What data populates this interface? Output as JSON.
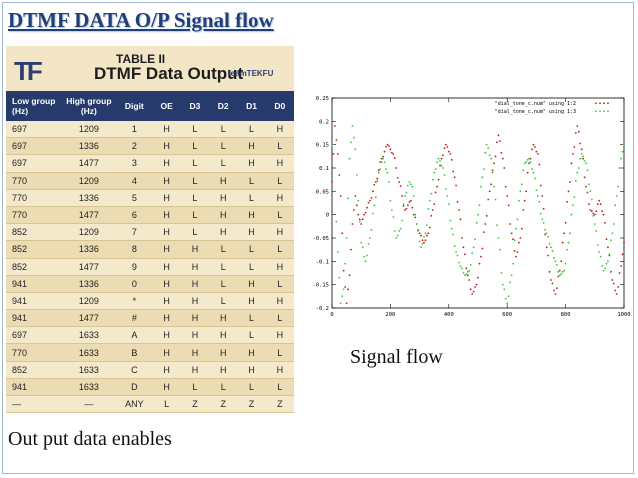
{
  "slide": {
    "title": "DTMF DATA O/P Signal flow",
    "signal_caption": "Signal flow",
    "bottom_caption": "Out put data enables"
  },
  "table": {
    "logo": "TF",
    "label": "TABLE II",
    "title": "DTMF Data Output",
    "brand": "teamTEKFU",
    "headers": [
      "Low group (Hz)",
      "High group (Hz)",
      "Digit",
      "OE",
      "D3",
      "D2",
      "D1",
      "D0"
    ],
    "rows": [
      [
        "697",
        "1209",
        "1",
        "H",
        "L",
        "L",
        "L",
        "H"
      ],
      [
        "697",
        "1336",
        "2",
        "H",
        "L",
        "L",
        "H",
        "L"
      ],
      [
        "697",
        "1477",
        "3",
        "H",
        "L",
        "L",
        "H",
        "H"
      ],
      [
        "770",
        "1209",
        "4",
        "H",
        "L",
        "H",
        "L",
        "L"
      ],
      [
        "770",
        "1336",
        "5",
        "H",
        "L",
        "H",
        "L",
        "H"
      ],
      [
        "770",
        "1477",
        "6",
        "H",
        "L",
        "H",
        "H",
        "L"
      ],
      [
        "852",
        "1209",
        "7",
        "H",
        "L",
        "H",
        "H",
        "H"
      ],
      [
        "852",
        "1336",
        "8",
        "H",
        "H",
        "L",
        "L",
        "L"
      ],
      [
        "852",
        "1477",
        "9",
        "H",
        "H",
        "L",
        "L",
        "H"
      ],
      [
        "941",
        "1336",
        "0",
        "H",
        "H",
        "L",
        "H",
        "L"
      ],
      [
        "941",
        "1209",
        "*",
        "H",
        "H",
        "L",
        "H",
        "H"
      ],
      [
        "941",
        "1477",
        "#",
        "H",
        "H",
        "H",
        "L",
        "L"
      ],
      [
        "697",
        "1633",
        "A",
        "H",
        "H",
        "H",
        "L",
        "H"
      ],
      [
        "770",
        "1633",
        "B",
        "H",
        "H",
        "H",
        "H",
        "L"
      ],
      [
        "852",
        "1633",
        "C",
        "H",
        "H",
        "H",
        "H",
        "H"
      ],
      [
        "941",
        "1633",
        "D",
        "H",
        "L",
        "L",
        "L",
        "L"
      ],
      [
        "—",
        "—",
        "ANY",
        "L",
        "Z",
        "Z",
        "Z",
        "Z"
      ]
    ]
  },
  "chart_data": {
    "type": "scatter",
    "xlim": [
      0,
      1000
    ],
    "ylim": [
      -0.2,
      0.25
    ],
    "x_ticks": [
      0,
      200,
      400,
      600,
      800,
      1000
    ],
    "y_ticks": [
      0.25,
      0.2,
      0.15,
      0.1,
      0.05,
      0,
      -0.05,
      -0.1,
      -0.15,
      -0.2
    ],
    "x_tick_labels": [
      "0",
      "200",
      "400",
      "600",
      "800",
      "1000"
    ],
    "y_tick_labels": [
      "0.25",
      "0.2",
      "0.15",
      "0.1",
      "0.05",
      "0",
      "-0.05",
      "-0.1",
      "-0.15",
      "-0.2"
    ],
    "legend_position": "top-right",
    "series": [
      {
        "name": "\"dial_tone_c.num\" using 1:2",
        "color": "#b22222",
        "points": [
          [
            0,
            0.07
          ],
          [
            10,
            0.19
          ],
          [
            20,
            0.13
          ],
          [
            30,
            0.04
          ],
          [
            40,
            -0.12
          ],
          [
            50,
            -0.19
          ],
          [
            60,
            -0.13
          ],
          [
            70,
            -0.02
          ],
          [
            80,
            0.04
          ],
          [
            90,
            0.0
          ],
          [
            100,
            -0.02
          ],
          [
            110,
            0.0
          ],
          [
            130,
            0.03
          ],
          [
            150,
            0.07
          ],
          [
            170,
            0.12
          ],
          [
            190,
            0.15
          ],
          [
            210,
            0.13
          ],
          [
            230,
            0.07
          ],
          [
            250,
            0.01
          ],
          [
            270,
            0.03
          ],
          [
            280,
            0.0
          ],
          [
            300,
            -0.04
          ],
          [
            315,
            -0.06
          ],
          [
            330,
            -0.04
          ],
          [
            345,
            0.01
          ],
          [
            360,
            0.06
          ],
          [
            375,
            0.12
          ],
          [
            390,
            0.15
          ],
          [
            405,
            0.13
          ],
          [
            420,
            0.08
          ],
          [
            435,
            0.01
          ],
          [
            450,
            -0.07
          ],
          [
            465,
            -0.13
          ],
          [
            480,
            -0.17
          ],
          [
            495,
            -0.15
          ],
          [
            510,
            -0.09
          ],
          [
            525,
            -0.02
          ],
          [
            540,
            0.05
          ],
          [
            555,
            0.11
          ],
          [
            570,
            0.17
          ],
          [
            585,
            0.12
          ],
          [
            600,
            0.04
          ],
          [
            615,
            -0.04
          ],
          [
            630,
            -0.09
          ],
          [
            645,
            -0.05
          ],
          [
            660,
            0.03
          ],
          [
            675,
            0.11
          ],
          [
            690,
            0.15
          ],
          [
            705,
            0.13
          ],
          [
            720,
            0.04
          ],
          [
            735,
            -0.07
          ],
          [
            750,
            -0.14
          ],
          [
            765,
            -0.17
          ],
          [
            780,
            -0.12
          ],
          [
            795,
            -0.04
          ],
          [
            810,
            0.05
          ],
          [
            825,
            0.13
          ],
          [
            840,
            0.19
          ],
          [
            855,
            0.14
          ],
          [
            870,
            0.06
          ],
          [
            885,
            0.01
          ],
          [
            900,
            0.0
          ],
          [
            915,
            0.03
          ],
          [
            930,
            0.0
          ],
          [
            945,
            -0.07
          ],
          [
            960,
            -0.14
          ],
          [
            975,
            -0.17
          ],
          [
            990,
            -0.11
          ],
          [
            1000,
            -0.06
          ]
        ]
      },
      {
        "name": "\"dial_tone_c.num\" using 1:3",
        "color": "#3cc83c",
        "points": [
          [
            0,
            0.15
          ],
          [
            10,
            0.05
          ],
          [
            20,
            -0.08
          ],
          [
            30,
            -0.19
          ],
          [
            40,
            -0.16
          ],
          [
            50,
            -0.05
          ],
          [
            60,
            0.12
          ],
          [
            70,
            0.19
          ],
          [
            80,
            0.14
          ],
          [
            90,
            0.03
          ],
          [
            100,
            -0.06
          ],
          [
            115,
            -0.1
          ],
          [
            130,
            -0.05
          ],
          [
            145,
            0.02
          ],
          [
            160,
            0.09
          ],
          [
            175,
            0.12
          ],
          [
            190,
            0.09
          ],
          [
            205,
            0.01
          ],
          [
            220,
            -0.05
          ],
          [
            235,
            -0.03
          ],
          [
            250,
            0.04
          ],
          [
            265,
            0.07
          ],
          [
            275,
            0.06
          ],
          [
            290,
            -0.02
          ],
          [
            305,
            -0.07
          ],
          [
            320,
            -0.04
          ],
          [
            335,
            0.03
          ],
          [
            350,
            0.09
          ],
          [
            365,
            0.12
          ],
          [
            380,
            0.1
          ],
          [
            395,
            0.04
          ],
          [
            410,
            -0.03
          ],
          [
            425,
            -0.08
          ],
          [
            440,
            -0.11
          ],
          [
            455,
            -0.13
          ],
          [
            470,
            -0.12
          ],
          [
            485,
            -0.07
          ],
          [
            500,
            0.0
          ],
          [
            515,
            0.08
          ],
          [
            530,
            0.15
          ],
          [
            545,
            0.12
          ],
          [
            555,
            0.06
          ],
          [
            570,
            -0.05
          ],
          [
            585,
            -0.15
          ],
          [
            600,
            -0.19
          ],
          [
            615,
            -0.13
          ],
          [
            630,
            -0.03
          ],
          [
            645,
            0.05
          ],
          [
            660,
            0.11
          ],
          [
            675,
            0.12
          ],
          [
            690,
            0.09
          ],
          [
            705,
            0.04
          ],
          [
            720,
            -0.01
          ],
          [
            735,
            -0.04
          ],
          [
            750,
            -0.07
          ],
          [
            765,
            -0.1
          ],
          [
            780,
            -0.13
          ],
          [
            795,
            -0.12
          ],
          [
            810,
            -0.06
          ],
          [
            825,
            0.02
          ],
          [
            840,
            0.09
          ],
          [
            855,
            0.13
          ],
          [
            870,
            0.11
          ],
          [
            885,
            0.05
          ],
          [
            900,
            -0.02
          ],
          [
            915,
            -0.08
          ],
          [
            930,
            -0.12
          ],
          [
            945,
            -0.1
          ],
          [
            960,
            -0.04
          ],
          [
            975,
            0.04
          ],
          [
            990,
            0.12
          ],
          [
            1000,
            0.15
          ]
        ]
      }
    ]
  }
}
